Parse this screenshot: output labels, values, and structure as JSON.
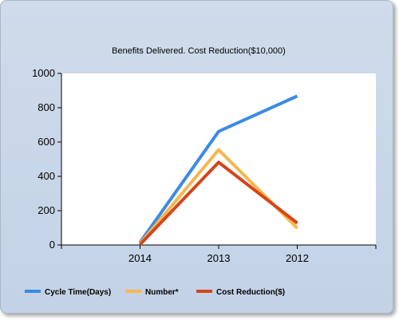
{
  "chart_data": {
    "type": "line",
    "title": "Benefits Delivered. Cost Reduction($10,000)",
    "categories": [
      "2014",
      "2013",
      "2012"
    ],
    "ylim": [
      0,
      1000
    ],
    "yticks": [
      0,
      200,
      400,
      600,
      800,
      1000
    ],
    "grid": false,
    "legend_position": "bottom",
    "series": [
      {
        "name": "Cycle Time(Days)",
        "color": "#3c8ae4",
        "values": [
          15,
          662,
          868
        ]
      },
      {
        "name": "Number*",
        "color": "#f7b64e",
        "values": [
          8,
          555,
          98
        ]
      },
      {
        "name": "Cost Reduction($)",
        "color": "#d5451a",
        "values": [
          3,
          482,
          128
        ]
      }
    ]
  }
}
